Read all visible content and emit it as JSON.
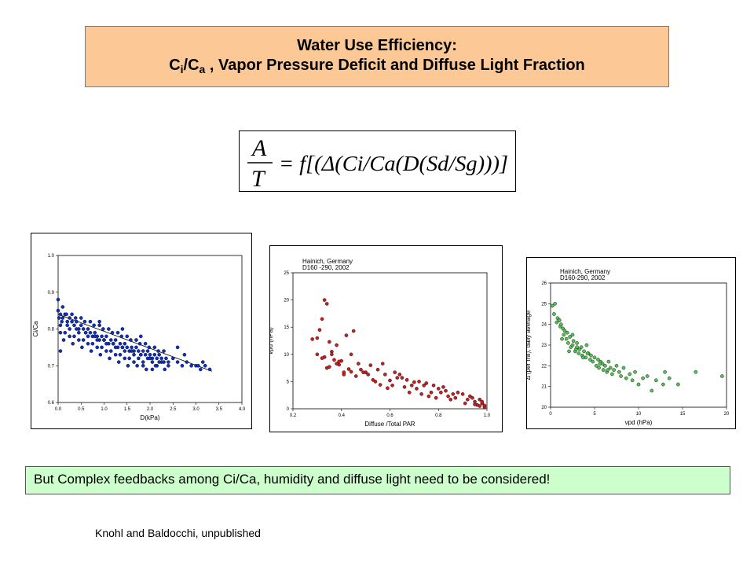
{
  "title": {
    "line1": "Water Use Efficiency:",
    "ci": "C",
    "ci_sub": "i",
    "slash": "/C",
    "ca_sub": "a",
    "rest": " , Vapor Pressure Deficit and Diffuse Light Fraction"
  },
  "equation": {
    "numerator": "A",
    "denominator": "T",
    "rhs": "= f[(Δ(Ci/Ca(D(Sd/Sg)))]"
  },
  "note": "But Complex feedbacks among Ci/Ca, humidity and diffuse light need to be considered!",
  "credit": "Knohl and Baldocchi, unpublished",
  "colors": {
    "blue": "#1030c0",
    "red": "#c82020",
    "green": "#58c058",
    "title_bg": "#fcc896",
    "note_bg": "#ccffcc"
  },
  "chart_data": [
    {
      "type": "scatter",
      "title": "",
      "xlabel": "D(kPa)",
      "ylabel": "Ci/Ca",
      "xlim": [
        0,
        4
      ],
      "ylim": [
        0.6,
        1.0
      ],
      "xticks": [
        "0.0",
        "0.5",
        "1.0",
        "1.5",
        "2.0",
        "2.5",
        "3.0",
        "3.5",
        "4.0"
      ],
      "yticks": [
        "0.6",
        "0.7",
        "0.8",
        "0.9",
        "1.0"
      ],
      "marker_color": "#1030c0",
      "trend": {
        "x": [
          0.0,
          3.35
        ],
        "y": [
          0.84,
          0.685
        ]
      },
      "points": {
        "x": [
          0.0,
          0.05,
          0.1,
          0.15,
          0.2,
          0.25,
          0.3,
          0.35,
          0.4,
          0.45,
          0.5,
          0.55,
          0.6,
          0.65,
          0.7,
          0.75,
          0.8,
          0.85,
          0.9,
          0.95,
          1.0,
          1.05,
          1.1,
          1.15,
          1.2,
          1.25,
          1.3,
          1.35,
          1.4,
          1.45,
          1.5,
          1.55,
          1.6,
          1.65,
          1.7,
          1.75,
          1.8,
          1.85,
          1.9,
          1.95,
          2.0,
          2.05,
          2.1,
          2.15,
          2.2,
          2.25,
          2.3,
          2.35,
          2.4,
          2.5,
          2.6,
          2.7,
          2.8,
          2.9,
          3.0,
          3.1,
          3.2,
          3.3,
          0.05,
          0.15,
          0.25,
          0.35,
          0.45,
          0.55,
          0.65,
          0.75,
          0.85,
          0.95,
          1.05,
          1.15,
          1.25,
          1.35,
          1.45,
          1.55,
          1.65,
          1.75,
          1.85,
          1.95,
          2.05,
          2.15,
          2.25,
          0.1,
          0.3,
          0.5,
          0.7,
          0.9,
          1.1,
          1.3,
          1.5,
          1.7,
          1.9,
          2.1,
          2.3,
          0.02,
          0.08,
          0.2,
          0.4,
          0.6,
          0.8,
          1.0,
          1.2,
          1.4,
          1.6,
          1.8,
          2.0,
          2.2,
          2.4,
          0.12,
          0.32,
          0.52,
          0.72,
          0.92,
          1.12,
          1.32,
          1.52,
          1.72,
          1.92,
          2.12,
          2.32,
          0.18,
          0.38,
          0.58,
          0.78,
          0.98,
          1.18,
          1.38,
          1.58,
          1.78,
          1.98,
          2.18,
          0.05,
          0.25,
          0.45,
          0.65,
          0.85,
          1.05,
          1.25,
          1.45,
          1.65,
          1.85,
          2.05,
          0.9,
          1.4,
          1.8,
          2.6,
          2.75,
          3.05,
          3.15,
          0.0,
          0.05
        ],
        "y": [
          0.85,
          0.84,
          0.83,
          0.84,
          0.82,
          0.83,
          0.82,
          0.81,
          0.82,
          0.8,
          0.81,
          0.8,
          0.79,
          0.8,
          0.79,
          0.78,
          0.79,
          0.78,
          0.77,
          0.78,
          0.77,
          0.78,
          0.76,
          0.77,
          0.76,
          0.77,
          0.75,
          0.76,
          0.75,
          0.76,
          0.75,
          0.74,
          0.75,
          0.74,
          0.75,
          0.74,
          0.73,
          0.74,
          0.73,
          0.74,
          0.73,
          0.72,
          0.73,
          0.72,
          0.73,
          0.72,
          0.71,
          0.72,
          0.71,
          0.72,
          0.71,
          0.7,
          0.71,
          0.7,
          0.7,
          0.69,
          0.7,
          0.69,
          0.81,
          0.79,
          0.8,
          0.78,
          0.79,
          0.77,
          0.78,
          0.76,
          0.77,
          0.75,
          0.76,
          0.74,
          0.75,
          0.73,
          0.74,
          0.72,
          0.73,
          0.72,
          0.71,
          0.72,
          0.71,
          0.7,
          0.71,
          0.86,
          0.84,
          0.83,
          0.82,
          0.81,
          0.8,
          0.79,
          0.78,
          0.77,
          0.76,
          0.75,
          0.74,
          0.83,
          0.82,
          0.81,
          0.8,
          0.79,
          0.78,
          0.77,
          0.76,
          0.75,
          0.74,
          0.73,
          0.72,
          0.71,
          0.7,
          0.77,
          0.76,
          0.75,
          0.74,
          0.73,
          0.72,
          0.71,
          0.7,
          0.7,
          0.69,
          0.7,
          0.69,
          0.84,
          0.83,
          0.82,
          0.81,
          0.8,
          0.79,
          0.78,
          0.77,
          0.76,
          0.75,
          0.74,
          0.79,
          0.78,
          0.77,
          0.76,
          0.75,
          0.74,
          0.73,
          0.72,
          0.71,
          0.7,
          0.69,
          0.82,
          0.8,
          0.78,
          0.75,
          0.73,
          0.7,
          0.71,
          0.88,
          0.74
        ]
      }
    },
    {
      "type": "scatter",
      "annotation": [
        "Hainich, Germany",
        "D160 -290, 2002"
      ],
      "xlabel": "Diffuse /Total PAR",
      "ylabel": "vpd (hPa)",
      "xlim": [
        0.2,
        1.0
      ],
      "ylim": [
        0,
        25
      ],
      "xticks": [
        "0.2",
        "0.4",
        "0.6",
        "0.8",
        "1.0"
      ],
      "yticks": [
        "0",
        "5",
        "10",
        "15",
        "20",
        "25"
      ],
      "marker_color": "#c82020",
      "points": {
        "x": [
          0.33,
          0.34,
          0.32,
          0.3,
          0.35,
          0.28,
          0.31,
          0.36,
          0.38,
          0.33,
          0.4,
          0.42,
          0.37,
          0.45,
          0.39,
          0.43,
          0.47,
          0.41,
          0.36,
          0.34,
          0.44,
          0.48,
          0.5,
          0.46,
          0.52,
          0.49,
          0.55,
          0.53,
          0.51,
          0.57,
          0.54,
          0.58,
          0.6,
          0.56,
          0.62,
          0.59,
          0.63,
          0.65,
          0.61,
          0.67,
          0.64,
          0.66,
          0.69,
          0.7,
          0.68,
          0.72,
          0.74,
          0.71,
          0.75,
          0.73,
          0.77,
          0.78,
          0.76,
          0.8,
          0.79,
          0.82,
          0.81,
          0.84,
          0.83,
          0.86,
          0.85,
          0.88,
          0.87,
          0.9,
          0.92,
          0.91,
          0.93,
          0.95,
          0.96,
          0.97,
          0.98,
          0.99,
          0.95,
          0.97,
          0.98,
          0.94,
          0.99,
          0.3,
          0.32,
          0.38,
          0.41,
          0.44,
          0.35,
          0.39
        ],
        "y": [
          20.0,
          19.3,
          16.5,
          13.0,
          12.3,
          12.8,
          14.5,
          10.5,
          11.7,
          9.5,
          8.8,
          13.5,
          9.0,
          14.3,
          8.1,
          7.3,
          8.3,
          6.3,
          10.0,
          7.5,
          6.8,
          7.2,
          6.7,
          6.0,
          8.0,
          6.7,
          7.2,
          5.3,
          6.3,
          8.3,
          5.0,
          6.3,
          5.2,
          4.4,
          6.7,
          3.8,
          5.7,
          5.7,
          4.3,
          5.3,
          6.3,
          4.0,
          4.3,
          4.9,
          3.0,
          5.0,
          4.3,
          3.7,
          4.7,
          2.7,
          3.0,
          4.3,
          2.3,
          3.7,
          2.0,
          4.0,
          3.0,
          2.3,
          3.3,
          2.7,
          1.7,
          3.0,
          2.0,
          2.7,
          1.7,
          1.0,
          2.3,
          1.3,
          0.7,
          1.7,
          1.0,
          0.3,
          0.8,
          0.5,
          1.3,
          2.0,
          0.6,
          10.0,
          9.3,
          8.3,
          6.7,
          10.0,
          7.7,
          8.7
        ]
      }
    },
    {
      "type": "scatter",
      "annotation": [
        "Hainich, Germany",
        "D160-290, 2002"
      ],
      "xlabel": "vpd (hPa)",
      "ylabel": "Δ (per mil), daily average",
      "xlim": [
        0,
        20
      ],
      "ylim": [
        20,
        26
      ],
      "xticks": [
        "0",
        "5",
        "10",
        "15",
        "20"
      ],
      "yticks": [
        "20",
        "21",
        "22",
        "23",
        "24",
        "25",
        "26"
      ],
      "marker_color": "#58c058",
      "points": {
        "x": [
          0.2,
          0.4,
          0.5,
          0.7,
          0.8,
          1.0,
          1.1,
          1.2,
          1.4,
          1.5,
          1.6,
          1.8,
          1.9,
          2.0,
          2.2,
          2.3,
          2.5,
          2.6,
          2.8,
          2.9,
          3.0,
          3.2,
          3.3,
          3.5,
          3.6,
          3.8,
          4.0,
          4.1,
          4.3,
          4.5,
          4.6,
          4.8,
          5.0,
          5.2,
          5.4,
          5.5,
          5.7,
          5.9,
          6.0,
          6.2,
          6.4,
          6.6,
          6.8,
          7.0,
          7.2,
          7.5,
          7.8,
          8.0,
          8.3,
          8.6,
          9.0,
          9.3,
          9.6,
          10.0,
          10.5,
          11.0,
          11.5,
          12.0,
          12.8,
          13.0,
          13.5,
          14.5,
          16.5,
          19.5,
          1.0,
          2.5,
          3.0,
          4.2,
          5.6,
          6.5,
          1.3,
          2.1,
          3.7
        ],
        "y": [
          24.9,
          24.5,
          25.0,
          24.1,
          24.3,
          24.2,
          23.9,
          24.0,
          23.8,
          23.5,
          23.7,
          23.3,
          23.6,
          23.1,
          23.4,
          22.9,
          23.0,
          23.2,
          22.7,
          22.8,
          23.1,
          22.6,
          22.8,
          22.9,
          22.5,
          22.7,
          22.4,
          23.0,
          22.6,
          22.3,
          22.5,
          22.2,
          22.4,
          22.0,
          22.3,
          21.9,
          22.2,
          22.1,
          21.8,
          22.0,
          21.7,
          22.2,
          21.9,
          21.6,
          21.8,
          22.0,
          21.7,
          21.5,
          21.9,
          21.4,
          21.6,
          21.3,
          21.7,
          21.1,
          21.4,
          21.5,
          20.8,
          21.3,
          21.1,
          21.7,
          21.4,
          21.1,
          21.7,
          21.5,
          24.2,
          23.5,
          22.9,
          22.6,
          22.1,
          21.8,
          23.3,
          22.7,
          22.4
        ]
      }
    }
  ]
}
